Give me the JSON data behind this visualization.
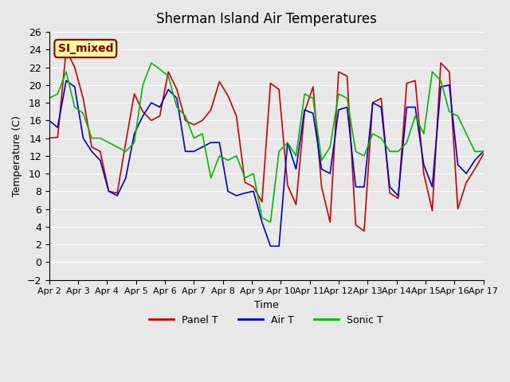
{
  "title": "Sherman Island Air Temperatures",
  "xlabel": "Time",
  "ylabel": "Temperature (C)",
  "ylim": [
    -2,
    26
  ],
  "background_color": "#e8e8e8",
  "plot_bg_color": "#e8e8e8",
  "annotation_text": "SI_mixed",
  "annotation_color": "#8b0000",
  "annotation_bg": "#ffff99",
  "legend_labels": [
    "Panel T",
    "Air T",
    "Sonic T"
  ],
  "line_colors": [
    "#cc0000",
    "#0000cc",
    "#00bb00"
  ],
  "x_tick_labels": [
    "Apr 2",
    "Apr 3",
    "Apr 4",
    "Apr 5",
    "Apr 6",
    "Apr 7",
    "Apr 8",
    "Apr 9",
    "Apr 10",
    "Apr 11",
    "Apr 12",
    "Apr 13",
    "Apr 14",
    "Apr 15",
    "Apr 16",
    "Apr 17"
  ],
  "panel_t": [
    14.0,
    14.1,
    24.0,
    22.0,
    18.5,
    13.0,
    12.5,
    8.0,
    7.8,
    13.5,
    19.0,
    17.0,
    16.0,
    16.5,
    21.5,
    19.5,
    16.0,
    15.5,
    16.0,
    17.2,
    20.4,
    18.8,
    16.5,
    9.0,
    8.5,
    6.8,
    20.2,
    19.5,
    8.7,
    6.5,
    17.0,
    19.8,
    8.5,
    4.5,
    21.5,
    21.0,
    4.2,
    3.5,
    18.0,
    18.5,
    7.8,
    7.2,
    20.2,
    20.5,
    10.0,
    5.8,
    22.5,
    21.5,
    6.0,
    9.0,
    10.5,
    12.2
  ],
  "air_t": [
    16.0,
    15.2,
    20.5,
    19.8,
    14.0,
    12.5,
    11.5,
    8.0,
    7.5,
    9.5,
    14.5,
    16.5,
    18.0,
    17.5,
    19.5,
    18.5,
    12.5,
    12.5,
    13.0,
    13.5,
    13.5,
    8.0,
    7.5,
    7.8,
    8.0,
    4.5,
    1.8,
    1.8,
    13.5,
    10.5,
    17.2,
    16.8,
    10.5,
    10.0,
    17.2,
    17.5,
    8.5,
    8.5,
    18.0,
    17.5,
    8.5,
    7.5,
    17.5,
    17.5,
    11.0,
    8.5,
    19.8,
    20.0,
    11.0,
    10.0,
    11.5,
    12.5
  ],
  "sonic_t": [
    18.5,
    19.0,
    21.5,
    17.5,
    16.8,
    14.0,
    14.0,
    13.5,
    13.0,
    12.5,
    13.5,
    20.0,
    22.5,
    21.8,
    21.0,
    17.5,
    16.5,
    14.0,
    14.5,
    9.5,
    12.0,
    11.5,
    12.0,
    9.5,
    10.0,
    5.0,
    4.5,
    12.5,
    13.5,
    12.0,
    19.0,
    18.5,
    11.5,
    13.0,
    19.0,
    18.5,
    12.5,
    12.0,
    14.5,
    14.0,
    12.5,
    12.5,
    13.5,
    16.5,
    14.5,
    21.5,
    20.5,
    17.0,
    16.5,
    14.5,
    12.5,
    12.5
  ]
}
